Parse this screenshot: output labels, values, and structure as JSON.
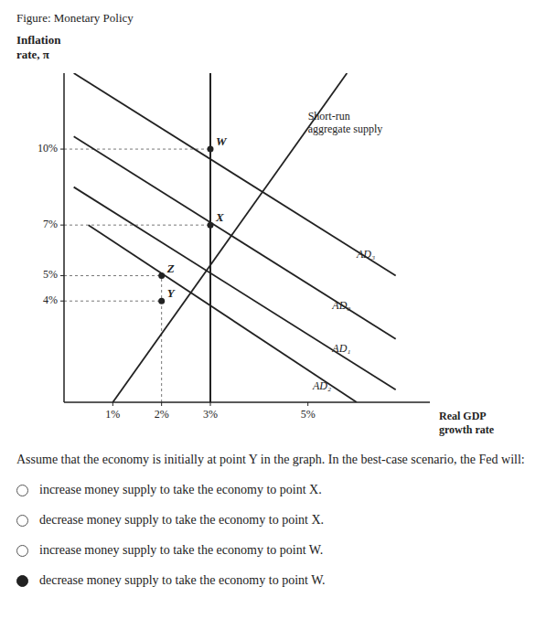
{
  "chart_data": {
    "type": "line",
    "title": "Figure: Monetary Policy",
    "y_label": "Inflation\nrate, π",
    "x_label": "Real GDP\ngrowth rate",
    "xlim": [
      0,
      7.5
    ],
    "ylim": [
      0,
      13
    ],
    "xticks": [
      {
        "value": 1,
        "label": "1%"
      },
      {
        "value": 2,
        "label": "2%"
      },
      {
        "value": 3,
        "label": "3%"
      },
      {
        "value": 5,
        "label": "5%"
      }
    ],
    "yticks": [
      {
        "value": 4,
        "label": "4%"
      },
      {
        "value": 5,
        "label": "5%"
      },
      {
        "value": 7,
        "label": "7%"
      },
      {
        "value": 10,
        "label": "10%"
      }
    ],
    "grid": false,
    "series": [
      {
        "name": "AD₀",
        "x": [
          0.2,
          6.8
        ],
        "values": [
          10.5,
          2.5
        ],
        "label_at": {
          "x": 5.5,
          "y": 3.8
        }
      },
      {
        "name": "AD₁",
        "x": [
          0.2,
          6.8
        ],
        "values": [
          8.5,
          0.5
        ],
        "label_at": {
          "x": 5.5,
          "y": 2.1
        }
      },
      {
        "name": "AD₂",
        "x": [
          0.5,
          6.0
        ],
        "values": [
          7.0,
          0.0
        ],
        "label_at": {
          "x": 5.1,
          "y": 0.6
        }
      },
      {
        "name": "AD₃",
        "x": [
          0.2,
          6.8
        ],
        "values": [
          13.0,
          5.0
        ],
        "label_at": {
          "x": 6.0,
          "y": 5.8
        }
      },
      {
        "name": "Short-run\naggregate supply",
        "x": [
          1.0,
          5.8
        ],
        "values": [
          0.0,
          13.0
        ],
        "label_at": {
          "x": 5.0,
          "y": 11.5
        }
      }
    ],
    "vertical_lines": [
      {
        "x": 3
      }
    ],
    "reference_lines_h": [
      {
        "y": 10,
        "x_start": 0,
        "x_end": 3
      },
      {
        "y": 7,
        "x_start": 0,
        "x_end": 3
      },
      {
        "y": 5,
        "x_start": 0,
        "x_end": 2
      },
      {
        "y": 4,
        "x_start": 0,
        "x_end": 2
      }
    ],
    "reference_lines_v": [
      {
        "x": 2,
        "y_start": 0,
        "y_end": 5
      },
      {
        "x": 3,
        "y_start": 0,
        "y_end": 7
      }
    ],
    "points": [
      {
        "name": "Y",
        "x": 2,
        "y": 4
      },
      {
        "name": "Z",
        "x": 2,
        "y": 5
      },
      {
        "name": "X",
        "x": 3,
        "y": 7
      },
      {
        "name": "W",
        "x": 3,
        "y": 10
      }
    ],
    "question": "Assume that the economy is initially at point Y in the graph. In the best-case scenario, the Fed will:",
    "answer_options": [
      {
        "text": "increase money supply to take the economy to point X.",
        "selected": false
      },
      {
        "text": "decrease money supply to take the economy to point X.",
        "selected": false
      },
      {
        "text": "increase money supply to take the economy to point W.",
        "selected": false
      },
      {
        "text": "decrease money supply to take the economy to point W.",
        "selected": true
      }
    ]
  }
}
